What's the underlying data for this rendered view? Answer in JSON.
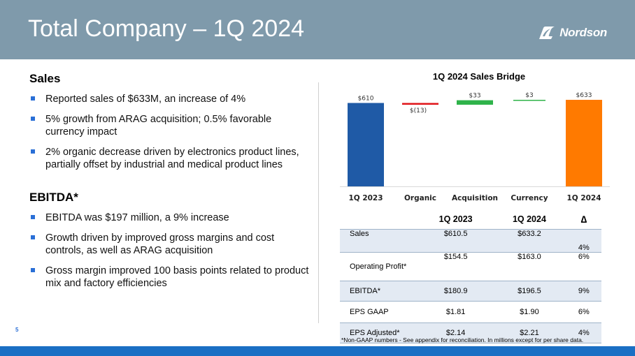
{
  "header": {
    "title": "Total Company – 1Q 2024",
    "logo_text": "Nordson"
  },
  "sales": {
    "heading": "Sales",
    "bullets": [
      "Reported sales of $633M, an increase of 4%",
      "5% growth from ARAG acquisition; 0.5% favorable currency impact",
      "2% organic decrease driven by electronics product lines, partially offset by industrial and medical product lines"
    ]
  },
  "ebitda": {
    "heading": "EBITDA*",
    "bullets": [
      "EBITDA was $197 million, a 9% increase",
      "Growth driven by improved gross margins and cost controls, as well as ARAG acquisition",
      "Gross margin improved 100 basis points related to product mix and factory efficiencies"
    ]
  },
  "chart_data": {
    "type": "bar",
    "subtype": "waterfall",
    "title": "1Q 2024 Sales Bridge",
    "categories": [
      "1Q 2023",
      "Organic",
      "Acquisition",
      "Currency",
      "1Q 2024"
    ],
    "values": [
      610,
      -13,
      33,
      3,
      633
    ],
    "data_labels": [
      "$610",
      "$(13)",
      "$33",
      "$3",
      "$633"
    ],
    "bar_roles": [
      "total",
      "delta",
      "delta",
      "delta",
      "total"
    ],
    "colors": [
      "#1f5aa6",
      "#e0161b",
      "#2fb34a",
      "#2fb34a",
      "#ff7a00"
    ],
    "xlabel": "",
    "ylabel": "",
    "ylim": [
      0,
      633
    ],
    "grid": false,
    "legend": "none"
  },
  "table": {
    "columns": [
      "",
      "1Q 2023",
      "1Q 2024",
      "∆"
    ],
    "rows": [
      {
        "label": "Sales",
        "q2023": "$610.5",
        "q2024": "$633.2",
        "delta": "4%"
      },
      {
        "label": "Operating Profit*",
        "q2023": "$154.5",
        "q2024": "$163.0",
        "delta": "6%"
      },
      {
        "label": "EBITDA*",
        "q2023": "$180.9",
        "q2024": "$196.5",
        "delta": "9%"
      },
      {
        "label": "EPS GAAP",
        "q2023": "$1.81",
        "q2024": "$1.90",
        "delta": "6%"
      },
      {
        "label": "EPS Adjusted*",
        "q2023": "$2.14",
        "q2024": "$2.21",
        "delta": "4%"
      }
    ]
  },
  "footnote": "*Non-GAAP numbers - See appendix for reconciliation. In millions except for per share data.",
  "page_number": "5"
}
